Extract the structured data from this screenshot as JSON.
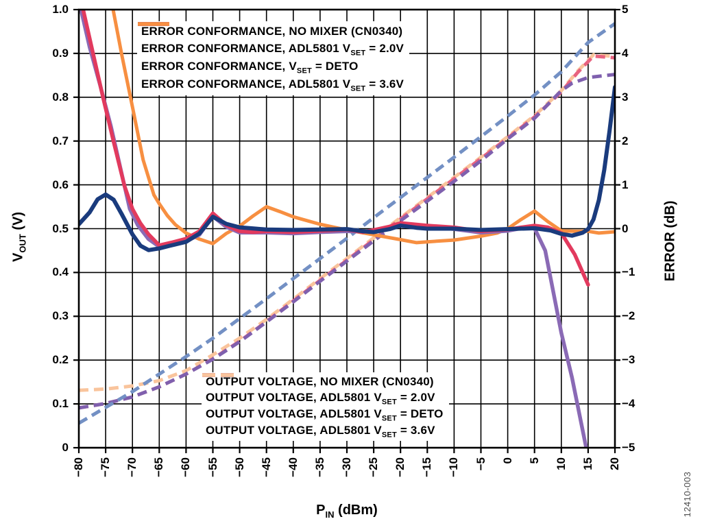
{
  "annotations": {
    "figure_number": "12410-003"
  },
  "axes": {
    "x": {
      "label_pre": "P",
      "label_sub": "IN",
      "label_post": " (dBm)",
      "min": -80,
      "max": 20,
      "tick_step": 5,
      "ticks": [
        "−80",
        "−75",
        "−70",
        "−65",
        "−60",
        "−55",
        "−50",
        "−45",
        "−40",
        "−35",
        "−30",
        "−25",
        "−20",
        "−15",
        "−10",
        "−5",
        "0",
        "5",
        "10",
        "15",
        "20"
      ]
    },
    "y_left": {
      "label_pre": "V",
      "label_sub": "OUT",
      "label_post": " (V)",
      "min": 0,
      "max": 1,
      "ticks": [
        "1.0",
        "0.9",
        "0.8",
        "0.7",
        "0.6",
        "0.5",
        "0.4",
        "0.3",
        "0.2",
        "0.1",
        "0"
      ]
    },
    "y_right": {
      "label": "ERROR (dB)",
      "min": -5,
      "max": 5,
      "ticks": [
        "5",
        "4",
        "3",
        "2",
        "1",
        "0",
        "−1",
        "−2",
        "−3",
        "−4",
        "−5"
      ]
    }
  },
  "chart_data": {
    "type": "line",
    "title": "",
    "xlabel": "PIN (dBm)",
    "ylabel_left": "VOUT (V)",
    "ylabel_right": "ERROR (dB)",
    "x_range": [
      -80,
      20
    ],
    "y_left_range": [
      0,
      1
    ],
    "y_right_range": [
      -5,
      5
    ],
    "grid": "on",
    "draw_order": [
      7,
      6,
      5,
      4,
      3,
      1,
      2,
      0
    ],
    "series": [
      {
        "id": "error-conformance-no-mixer-cn0340",
        "label_pre": "ERROR CONFORMANCE, NO MIXER (CN0340)",
        "label_sub": "",
        "label_post": "",
        "color": "#1a3b7d",
        "style": "solid",
        "width": 6,
        "axis": "left",
        "legend": "top",
        "points": [
          [
            -80,
            0.51
          ],
          [
            -78,
            0.537
          ],
          [
            -76.5,
            0.567
          ],
          [
            -75,
            0.578
          ],
          [
            -73.5,
            0.566
          ],
          [
            -72,
            0.533
          ],
          [
            -70,
            0.487
          ],
          [
            -68.5,
            0.461
          ],
          [
            -67,
            0.451
          ],
          [
            -65,
            0.455
          ],
          [
            -63,
            0.461
          ],
          [
            -60,
            0.47
          ],
          [
            -57.5,
            0.489
          ],
          [
            -55,
            0.527
          ],
          [
            -52.5,
            0.511
          ],
          [
            -50,
            0.503
          ],
          [
            -47,
            0.5
          ],
          [
            -45,
            0.498
          ],
          [
            -40,
            0.497
          ],
          [
            -35,
            0.498
          ],
          [
            -30,
            0.499
          ],
          [
            -27,
            0.494
          ],
          [
            -25,
            0.492
          ],
          [
            -22,
            0.499
          ],
          [
            -20,
            0.507
          ],
          [
            -17,
            0.502
          ],
          [
            -15,
            0.5
          ],
          [
            -10,
            0.5
          ],
          [
            -5,
            0.497
          ],
          [
            0,
            0.499
          ],
          [
            5,
            0.501
          ],
          [
            8,
            0.496
          ],
          [
            10,
            0.488
          ],
          [
            12,
            0.484
          ],
          [
            14,
            0.491
          ],
          [
            15,
            0.499
          ],
          [
            16,
            0.521
          ],
          [
            17,
            0.565
          ],
          [
            18,
            0.634
          ],
          [
            19,
            0.724
          ],
          [
            20,
            0.823
          ]
        ]
      },
      {
        "id": "error-conformance-adl5801-vset-2v0",
        "label_pre": "ERROR CONFORMANCE, ADL5801 V",
        "label_sub": "SET",
        "label_post": " = 2.0V",
        "color": "#8a6ab5",
        "style": "solid",
        "width": 5.5,
        "axis": "left",
        "legend": "top",
        "points": [
          [
            -79.6,
            1.0
          ],
          [
            -78,
            0.915
          ],
          [
            -76,
            0.826
          ],
          [
            -74,
            0.733
          ],
          [
            -72,
            0.625
          ],
          [
            -70.5,
            0.545
          ],
          [
            -69,
            0.508
          ],
          [
            -67,
            0.476
          ],
          [
            -65,
            0.459
          ],
          [
            -62,
            0.466
          ],
          [
            -60,
            0.471
          ],
          [
            -57.5,
            0.486
          ],
          [
            -55,
            0.528
          ],
          [
            -52.5,
            0.504
          ],
          [
            -50,
            0.491
          ],
          [
            -45,
            0.491
          ],
          [
            -40,
            0.489
          ],
          [
            -35,
            0.492
          ],
          [
            -30,
            0.494
          ],
          [
            -25,
            0.493
          ],
          [
            -20,
            0.508
          ],
          [
            -15,
            0.504
          ],
          [
            -10,
            0.499
          ],
          [
            -5,
            0.491
          ],
          [
            0,
            0.495
          ],
          [
            3,
            0.502
          ],
          [
            5,
            0.501
          ],
          [
            7,
            0.45
          ],
          [
            10,
            0.262
          ],
          [
            12,
            0.16
          ],
          [
            14.6,
            0.002
          ]
        ]
      },
      {
        "id": "error-conformance-vset-deto",
        "label_pre": "ERROR CONFORMANCE, V",
        "label_sub": "SET",
        "label_post": " = DETO",
        "color": "#e23a5e",
        "style": "solid",
        "width": 5.5,
        "axis": "left",
        "legend": "top",
        "points": [
          [
            -79.2,
            1.0
          ],
          [
            -77.5,
            0.908
          ],
          [
            -75.5,
            0.8
          ],
          [
            -73.5,
            0.698
          ],
          [
            -71.5,
            0.598
          ],
          [
            -70,
            0.545
          ],
          [
            -68.5,
            0.512
          ],
          [
            -67,
            0.487
          ],
          [
            -65,
            0.462
          ],
          [
            -62.5,
            0.469
          ],
          [
            -60,
            0.477
          ],
          [
            -57.5,
            0.494
          ],
          [
            -55,
            0.535
          ],
          [
            -52.5,
            0.508
          ],
          [
            -50,
            0.494
          ],
          [
            -47.5,
            0.492
          ],
          [
            -45,
            0.494
          ],
          [
            -40,
            0.492
          ],
          [
            -35,
            0.495
          ],
          [
            -30,
            0.498
          ],
          [
            -27,
            0.492
          ],
          [
            -25,
            0.497
          ],
          [
            -22,
            0.505
          ],
          [
            -20,
            0.513
          ],
          [
            -17.5,
            0.51
          ],
          [
            -15,
            0.507
          ],
          [
            -10,
            0.503
          ],
          [
            -5,
            0.494
          ],
          [
            0,
            0.498
          ],
          [
            2.5,
            0.503
          ],
          [
            5,
            0.507
          ],
          [
            7.5,
            0.503
          ],
          [
            10,
            0.49
          ],
          [
            12.5,
            0.441
          ],
          [
            15,
            0.372
          ]
        ]
      },
      {
        "id": "error-conformance-adl5801-vset-3v6",
        "label_pre": "ERROR CONFORMANCE, ADL5801 V",
        "label_sub": "SET",
        "label_post": " = 3.6V",
        "color": "#f78f41",
        "style": "solid",
        "width": 5,
        "axis": "left",
        "legend": "top",
        "points": [
          [
            -73.6,
            1.0
          ],
          [
            -72,
            0.897
          ],
          [
            -70,
            0.778
          ],
          [
            -68,
            0.657
          ],
          [
            -66,
            0.577
          ],
          [
            -65,
            0.557
          ],
          [
            -63.5,
            0.53
          ],
          [
            -62,
            0.509
          ],
          [
            -60,
            0.49
          ],
          [
            -57.5,
            0.476
          ],
          [
            -55,
            0.466
          ],
          [
            -52.5,
            0.489
          ],
          [
            -50,
            0.506
          ],
          [
            -47.5,
            0.529
          ],
          [
            -45,
            0.55
          ],
          [
            -42.5,
            0.539
          ],
          [
            -40,
            0.527
          ],
          [
            -35,
            0.51
          ],
          [
            -30,
            0.497
          ],
          [
            -25,
            0.486
          ],
          [
            -20,
            0.475
          ],
          [
            -17,
            0.468
          ],
          [
            -15,
            0.47
          ],
          [
            -10,
            0.474
          ],
          [
            -5,
            0.483
          ],
          [
            -2,
            0.49
          ],
          [
            0,
            0.5
          ],
          [
            2.5,
            0.521
          ],
          [
            5,
            0.54
          ],
          [
            7.5,
            0.516
          ],
          [
            10,
            0.495
          ],
          [
            12.5,
            0.494
          ],
          [
            15,
            0.494
          ],
          [
            17,
            0.49
          ],
          [
            20,
            0.493
          ]
        ]
      },
      {
        "id": "output-voltage-no-mixer-cn0340",
        "label_pre": "OUTPUT VOLTAGE, NO MIXER (CN0340)",
        "label_sub": "",
        "label_post": "",
        "color": "#7390c4",
        "style": "dashed",
        "width": 5,
        "axis": "left",
        "legend": "bottom",
        "points": [
          [
            -80,
            0.056
          ],
          [
            -75,
            0.092
          ],
          [
            -70,
            0.128
          ],
          [
            -65,
            0.168
          ],
          [
            -60,
            0.208
          ],
          [
            -55,
            0.25
          ],
          [
            -50,
            0.295
          ],
          [
            -45,
            0.34
          ],
          [
            -40,
            0.386
          ],
          [
            -35,
            0.432
          ],
          [
            -30,
            0.478
          ],
          [
            -25,
            0.525
          ],
          [
            -20,
            0.571
          ],
          [
            -15,
            0.617
          ],
          [
            -10,
            0.663
          ],
          [
            -5,
            0.71
          ],
          [
            0,
            0.757
          ],
          [
            5,
            0.805
          ],
          [
            10,
            0.858
          ],
          [
            15,
            0.925
          ],
          [
            20,
            0.968
          ]
        ]
      },
      {
        "id": "output-voltage-adl5801-vset-2v0",
        "label_pre": "OUTPUT VOLTAGE, ADL5801 V",
        "label_sub": "SET",
        "label_post": " = 2.0V",
        "color": "#7f60ae",
        "style": "dashed",
        "width": 5,
        "axis": "left",
        "legend": "bottom",
        "points": [
          [
            -80,
            0.091
          ],
          [
            -75,
            0.101
          ],
          [
            -70,
            0.116
          ],
          [
            -65,
            0.139
          ],
          [
            -60,
            0.168
          ],
          [
            -55,
            0.202
          ],
          [
            -50,
            0.242
          ],
          [
            -45,
            0.287
          ],
          [
            -40,
            0.333
          ],
          [
            -35,
            0.38
          ],
          [
            -30,
            0.426
          ],
          [
            -25,
            0.472
          ],
          [
            -20,
            0.518
          ],
          [
            -15,
            0.563
          ],
          [
            -10,
            0.608
          ],
          [
            -5,
            0.655
          ],
          [
            0,
            0.705
          ],
          [
            5,
            0.752
          ],
          [
            8,
            0.79
          ],
          [
            10,
            0.815
          ],
          [
            12,
            0.832
          ],
          [
            15,
            0.845
          ],
          [
            20,
            0.852
          ]
        ]
      },
      {
        "id": "output-voltage-adl5801-vset-deto",
        "label_pre": "OUTPUT VOLTAGE, ADL5801 V",
        "label_sub": "SET",
        "label_post": " = DETO",
        "color": "#e8637f",
        "style": "dashed",
        "width": 5,
        "axis": "left",
        "legend": "bottom",
        "points": [
          [
            -80,
            0.091
          ],
          [
            -75,
            0.101
          ],
          [
            -70,
            0.116
          ],
          [
            -65,
            0.139
          ],
          [
            -60,
            0.168
          ],
          [
            -55,
            0.203
          ],
          [
            -50,
            0.243
          ],
          [
            -45,
            0.288
          ],
          [
            -40,
            0.335
          ],
          [
            -35,
            0.382
          ],
          [
            -30,
            0.428
          ],
          [
            -25,
            0.475
          ],
          [
            -20,
            0.522
          ],
          [
            -15,
            0.568
          ],
          [
            -10,
            0.614
          ],
          [
            -5,
            0.66
          ],
          [
            0,
            0.707
          ],
          [
            5,
            0.755
          ],
          [
            10,
            0.812
          ],
          [
            13,
            0.856
          ],
          [
            16,
            0.894
          ],
          [
            20,
            0.89
          ]
        ]
      },
      {
        "id": "output-voltage-adl5801-vset-3v6",
        "label_pre": "OUTPUT VOLTAGE, ADL5801 V",
        "label_sub": "SET",
        "label_post": " = 3.6V",
        "color": "#f9c49c",
        "style": "dashed",
        "width": 5,
        "axis": "left",
        "legend": "bottom",
        "points": [
          [
            -80,
            0.131
          ],
          [
            -75,
            0.134
          ],
          [
            -70,
            0.141
          ],
          [
            -65,
            0.153
          ],
          [
            -60,
            0.176
          ],
          [
            -55,
            0.212
          ],
          [
            -50,
            0.25
          ],
          [
            -45,
            0.293
          ],
          [
            -40,
            0.339
          ],
          [
            -35,
            0.386
          ],
          [
            -30,
            0.432
          ],
          [
            -25,
            0.479
          ],
          [
            -20,
            0.525
          ],
          [
            -15,
            0.571
          ],
          [
            -10,
            0.617
          ],
          [
            -5,
            0.663
          ],
          [
            0,
            0.71
          ],
          [
            5,
            0.758
          ],
          [
            10,
            0.815
          ],
          [
            13,
            0.859
          ],
          [
            16,
            0.897
          ],
          [
            20,
            0.893
          ]
        ]
      }
    ]
  }
}
